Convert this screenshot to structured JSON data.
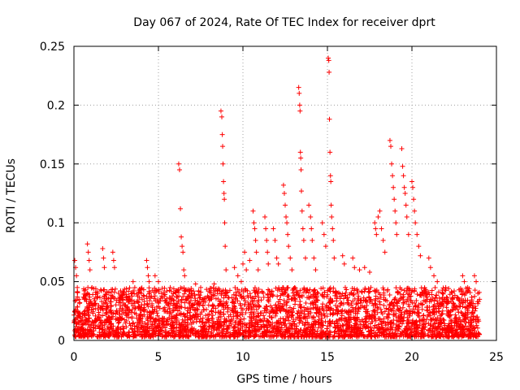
{
  "chart_data": {
    "type": "scatter",
    "title": "Day 067 of 2024, Rate Of TEC Index for receiver dprt",
    "xlabel": "GPS time / hours",
    "ylabel": "ROTI / TECUs",
    "xlim": [
      0,
      25
    ],
    "ylim": [
      0,
      0.25
    ],
    "x_ticks": [
      0,
      5,
      10,
      15,
      20,
      25
    ],
    "x_tick_labels": [
      "0",
      "5",
      "10",
      "15",
      "20",
      "25"
    ],
    "y_ticks": [
      0,
      0.05,
      0.1,
      0.15,
      0.2,
      0.25
    ],
    "y_tick_labels": [
      "0",
      "0.05",
      "0.1",
      "0.15",
      "0.2",
      "0.25"
    ],
    "grid": true,
    "marker": "+",
    "color": "#ff0000",
    "series": [
      {
        "name": "ROTI",
        "points": [
          [
            0.05,
            0.068
          ],
          [
            0.1,
            0.062
          ],
          [
            0.15,
            0.055
          ],
          [
            0.2,
            0.045
          ],
          [
            0.3,
            0.035
          ],
          [
            0.8,
            0.082
          ],
          [
            0.85,
            0.075
          ],
          [
            0.9,
            0.068
          ],
          [
            0.95,
            0.06
          ],
          [
            1.7,
            0.078
          ],
          [
            1.75,
            0.07
          ],
          [
            1.8,
            0.062
          ],
          [
            2.3,
            0.075
          ],
          [
            2.35,
            0.068
          ],
          [
            2.4,
            0.062
          ],
          [
            3.5,
            0.05
          ],
          [
            3.6,
            0.045
          ],
          [
            4.3,
            0.068
          ],
          [
            4.35,
            0.062
          ],
          [
            4.4,
            0.055
          ],
          [
            4.45,
            0.05
          ],
          [
            4.8,
            0.055
          ],
          [
            5.0,
            0.05
          ],
          [
            5.5,
            0.042
          ],
          [
            5.7,
            0.045
          ],
          [
            6.2,
            0.15
          ],
          [
            6.25,
            0.145
          ],
          [
            6.3,
            0.112
          ],
          [
            6.35,
            0.088
          ],
          [
            6.4,
            0.08
          ],
          [
            6.45,
            0.075
          ],
          [
            6.5,
            0.06
          ],
          [
            6.55,
            0.055
          ],
          [
            7.2,
            0.048
          ],
          [
            7.5,
            0.045
          ],
          [
            8.0,
            0.042
          ],
          [
            8.3,
            0.048
          ],
          [
            8.7,
            0.195
          ],
          [
            8.75,
            0.19
          ],
          [
            8.78,
            0.175
          ],
          [
            8.8,
            0.165
          ],
          [
            8.82,
            0.15
          ],
          [
            8.85,
            0.135
          ],
          [
            8.88,
            0.125
          ],
          [
            8.9,
            0.12
          ],
          [
            8.92,
            0.1
          ],
          [
            8.95,
            0.08
          ],
          [
            9.0,
            0.06
          ],
          [
            9.5,
            0.062
          ],
          [
            9.7,
            0.055
          ],
          [
            9.9,
            0.05
          ],
          [
            10.0,
            0.065
          ],
          [
            10.1,
            0.075
          ],
          [
            10.2,
            0.06
          ],
          [
            10.4,
            0.068
          ],
          [
            10.6,
            0.11
          ],
          [
            10.65,
            0.1
          ],
          [
            10.7,
            0.095
          ],
          [
            10.75,
            0.085
          ],
          [
            10.8,
            0.075
          ],
          [
            10.9,
            0.06
          ],
          [
            11.3,
            0.105
          ],
          [
            11.35,
            0.095
          ],
          [
            11.4,
            0.085
          ],
          [
            11.45,
            0.075
          ],
          [
            11.5,
            0.065
          ],
          [
            11.8,
            0.095
          ],
          [
            11.9,
            0.085
          ],
          [
            12.0,
            0.07
          ],
          [
            12.1,
            0.065
          ],
          [
            12.4,
            0.132
          ],
          [
            12.45,
            0.125
          ],
          [
            12.5,
            0.115
          ],
          [
            12.55,
            0.105
          ],
          [
            12.6,
            0.1
          ],
          [
            12.65,
            0.09
          ],
          [
            12.7,
            0.08
          ],
          [
            12.8,
            0.07
          ],
          [
            12.9,
            0.06
          ],
          [
            13.3,
            0.215
          ],
          [
            13.33,
            0.21
          ],
          [
            13.36,
            0.2
          ],
          [
            13.38,
            0.195
          ],
          [
            13.4,
            0.16
          ],
          [
            13.42,
            0.155
          ],
          [
            13.44,
            0.145
          ],
          [
            13.46,
            0.127
          ],
          [
            13.5,
            0.11
          ],
          [
            13.55,
            0.095
          ],
          [
            13.6,
            0.085
          ],
          [
            13.7,
            0.07
          ],
          [
            13.9,
            0.115
          ],
          [
            14.0,
            0.105
          ],
          [
            14.05,
            0.095
          ],
          [
            14.1,
            0.085
          ],
          [
            14.2,
            0.07
          ],
          [
            14.3,
            0.06
          ],
          [
            14.7,
            0.1
          ],
          [
            14.8,
            0.09
          ],
          [
            14.9,
            0.08
          ],
          [
            15.05,
            0.24
          ],
          [
            15.08,
            0.238
          ],
          [
            15.1,
            0.228
          ],
          [
            15.12,
            0.188
          ],
          [
            15.15,
            0.16
          ],
          [
            15.18,
            0.14
          ],
          [
            15.2,
            0.135
          ],
          [
            15.22,
            0.115
          ],
          [
            15.25,
            0.105
          ],
          [
            15.3,
            0.095
          ],
          [
            15.35,
            0.085
          ],
          [
            15.4,
            0.07
          ],
          [
            15.9,
            0.072
          ],
          [
            16.0,
            0.065
          ],
          [
            16.5,
            0.07
          ],
          [
            16.6,
            0.062
          ],
          [
            16.9,
            0.06
          ],
          [
            17.2,
            0.062
          ],
          [
            17.5,
            0.058
          ],
          [
            17.8,
            0.1
          ],
          [
            17.85,
            0.095
          ],
          [
            17.9,
            0.09
          ],
          [
            18.0,
            0.105
          ],
          [
            18.1,
            0.11
          ],
          [
            18.2,
            0.095
          ],
          [
            18.3,
            0.085
          ],
          [
            18.4,
            0.075
          ],
          [
            18.7,
            0.17
          ],
          [
            18.75,
            0.165
          ],
          [
            18.8,
            0.15
          ],
          [
            18.85,
            0.14
          ],
          [
            18.9,
            0.13
          ],
          [
            18.95,
            0.12
          ],
          [
            19.0,
            0.11
          ],
          [
            19.05,
            0.1
          ],
          [
            19.1,
            0.09
          ],
          [
            19.4,
            0.163
          ],
          [
            19.45,
            0.148
          ],
          [
            19.5,
            0.14
          ],
          [
            19.55,
            0.13
          ],
          [
            19.6,
            0.125
          ],
          [
            19.65,
            0.115
          ],
          [
            19.7,
            0.105
          ],
          [
            19.8,
            0.09
          ],
          [
            20.0,
            0.135
          ],
          [
            20.05,
            0.13
          ],
          [
            20.1,
            0.12
          ],
          [
            20.15,
            0.11
          ],
          [
            20.2,
            0.1
          ],
          [
            20.3,
            0.09
          ],
          [
            20.4,
            0.08
          ],
          [
            20.5,
            0.072
          ],
          [
            21.0,
            0.07
          ],
          [
            21.1,
            0.062
          ],
          [
            21.3,
            0.055
          ],
          [
            21.5,
            0.05
          ],
          [
            22.0,
            0.045
          ],
          [
            22.5,
            0.042
          ],
          [
            23.0,
            0.055
          ],
          [
            23.1,
            0.05
          ],
          [
            23.3,
            0.045
          ],
          [
            23.7,
            0.055
          ],
          [
            23.8,
            0.05
          ],
          [
            23.9,
            0.04
          ],
          [
            24.0,
            0.035
          ]
        ],
        "band": {
          "description": "dense baseline of points across the full day",
          "x_range": [
            0,
            24
          ],
          "y_range": [
            0.003,
            0.045
          ],
          "count": 3400
        }
      }
    ]
  }
}
